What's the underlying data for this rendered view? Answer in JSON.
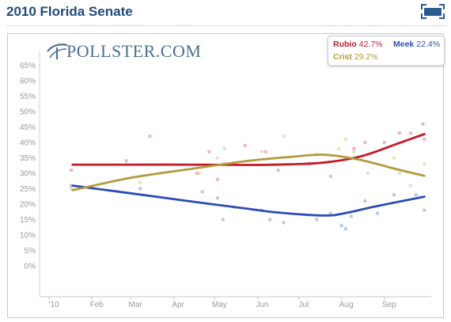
{
  "page": {
    "title": "2010 Florida Senate",
    "logo_text": "POLLSTER.COM",
    "expand_icon": "fullscreen-icon"
  },
  "legend": {
    "entries": [
      {
        "name": "Rubio",
        "value": "42.7%",
        "color": "#c41a28"
      },
      {
        "name": "Meek",
        "value": "22.4%",
        "color": "#2d4cb3"
      },
      {
        "name": "Crist",
        "value": "29.2%",
        "color": "#b39a3c"
      }
    ]
  },
  "chart_data": {
    "type": "line",
    "title": "2010 Florida Senate",
    "xlabel": "",
    "ylabel": "",
    "x_ticks": [
      "'10",
      "Feb",
      "Mar",
      "Apr",
      "May",
      "Jun",
      "Jul",
      "Aug",
      "Sep"
    ],
    "x_tick_dates": [
      "2010-01-01",
      "2010-02-01",
      "2010-03-01",
      "2010-04-01",
      "2010-05-01",
      "2010-06-01",
      "2010-07-01",
      "2010-08-01",
      "2010-09-01"
    ],
    "y_ticks": [
      "0%",
      "5%",
      "10%",
      "15%",
      "20%",
      "25%",
      "30%",
      "35%",
      "40%",
      "45%",
      "50%",
      "55%",
      "60%",
      "65%"
    ],
    "ylim": [
      0,
      65
    ],
    "xlim": [
      "2009-12-25",
      "2010-10-05"
    ],
    "grid": false,
    "legend_position": "top-right",
    "series": [
      {
        "name": "Rubio",
        "color": "#c41a28",
        "trend": [
          {
            "x": "2010-01-18",
            "y": 32.8
          },
          {
            "x": "2010-03-01",
            "y": 32.8
          },
          {
            "x": "2010-04-15",
            "y": 32.8
          },
          {
            "x": "2010-05-25",
            "y": 32.7
          },
          {
            "x": "2010-06-25",
            "y": 32.9
          },
          {
            "x": "2010-07-20",
            "y": 33.5
          },
          {
            "x": "2010-08-15",
            "y": 35.5
          },
          {
            "x": "2010-09-10",
            "y": 39.5
          },
          {
            "x": "2010-09-30",
            "y": 42.7
          }
        ],
        "polls": [
          {
            "x": "2010-01-17",
            "y": 31
          },
          {
            "x": "2010-02-26",
            "y": 34
          },
          {
            "x": "2010-03-15",
            "y": 42
          },
          {
            "x": "2010-04-18",
            "y": 30
          },
          {
            "x": "2010-04-27",
            "y": 37
          },
          {
            "x": "2010-05-03",
            "y": 28
          },
          {
            "x": "2010-05-08",
            "y": 33
          },
          {
            "x": "2010-05-23",
            "y": 39
          },
          {
            "x": "2010-06-07",
            "y": 37
          },
          {
            "x": "2010-06-16",
            "y": 31
          },
          {
            "x": "2010-07-09",
            "y": 33
          },
          {
            "x": "2010-07-24",
            "y": 29
          },
          {
            "x": "2010-08-10",
            "y": 38
          },
          {
            "x": "2010-08-18",
            "y": 40
          },
          {
            "x": "2010-09-01",
            "y": 40
          },
          {
            "x": "2010-09-12",
            "y": 43
          },
          {
            "x": "2010-09-20",
            "y": 43
          },
          {
            "x": "2010-09-29",
            "y": 46
          },
          {
            "x": "2010-09-30",
            "y": 41
          }
        ]
      },
      {
        "name": "Meek",
        "color": "#2d4cb3",
        "trend": [
          {
            "x": "2010-01-18",
            "y": 26
          },
          {
            "x": "2010-03-01",
            "y": 23.5
          },
          {
            "x": "2010-04-15",
            "y": 20.8
          },
          {
            "x": "2010-05-25",
            "y": 18.5
          },
          {
            "x": "2010-06-15",
            "y": 17.3
          },
          {
            "x": "2010-07-20",
            "y": 16.3
          },
          {
            "x": "2010-08-05",
            "y": 17.2
          },
          {
            "x": "2010-08-25",
            "y": 19.2
          },
          {
            "x": "2010-09-30",
            "y": 22.4
          }
        ],
        "polls": [
          {
            "x": "2010-01-17",
            "y": 26
          },
          {
            "x": "2010-03-08",
            "y": 25
          },
          {
            "x": "2010-04-22",
            "y": 24
          },
          {
            "x": "2010-05-03",
            "y": 22
          },
          {
            "x": "2010-05-07",
            "y": 15
          },
          {
            "x": "2010-05-15",
            "y": 19
          },
          {
            "x": "2010-06-04",
            "y": 18
          },
          {
            "x": "2010-06-10",
            "y": 15
          },
          {
            "x": "2010-06-20",
            "y": 14
          },
          {
            "x": "2010-07-14",
            "y": 15
          },
          {
            "x": "2010-07-24",
            "y": 17
          },
          {
            "x": "2010-08-01",
            "y": 13
          },
          {
            "x": "2010-08-04",
            "y": 12
          },
          {
            "x": "2010-08-08",
            "y": 16
          },
          {
            "x": "2010-08-18",
            "y": 21
          },
          {
            "x": "2010-08-27",
            "y": 17
          },
          {
            "x": "2010-09-08",
            "y": 23
          },
          {
            "x": "2010-09-24",
            "y": 23
          },
          {
            "x": "2010-09-30",
            "y": 18
          }
        ]
      },
      {
        "name": "Crist",
        "color": "#b39a3c",
        "trend": [
          {
            "x": "2010-01-18",
            "y": 24.5
          },
          {
            "x": "2010-03-01",
            "y": 28.5
          },
          {
            "x": "2010-04-15",
            "y": 31.5
          },
          {
            "x": "2010-05-25",
            "y": 34
          },
          {
            "x": "2010-06-25",
            "y": 35.3
          },
          {
            "x": "2010-07-20",
            "y": 36
          },
          {
            "x": "2010-08-15",
            "y": 34.3
          },
          {
            "x": "2010-09-10",
            "y": 31.3
          },
          {
            "x": "2010-09-30",
            "y": 29.2
          }
        ],
        "polls": [
          {
            "x": "2010-01-17",
            "y": 25
          },
          {
            "x": "2010-03-08",
            "y": 27
          },
          {
            "x": "2010-04-20",
            "y": 30
          },
          {
            "x": "2010-05-03",
            "y": 35
          },
          {
            "x": "2010-05-08",
            "y": 38
          },
          {
            "x": "2010-06-04",
            "y": 37
          },
          {
            "x": "2010-06-20",
            "y": 42
          },
          {
            "x": "2010-07-14",
            "y": 36
          },
          {
            "x": "2010-07-30",
            "y": 38
          },
          {
            "x": "2010-08-04",
            "y": 41
          },
          {
            "x": "2010-08-10",
            "y": 37
          },
          {
            "x": "2010-08-20",
            "y": 30
          },
          {
            "x": "2010-09-08",
            "y": 35
          },
          {
            "x": "2010-09-12",
            "y": 30
          },
          {
            "x": "2010-09-20",
            "y": 26
          },
          {
            "x": "2010-09-30",
            "y": 33
          }
        ]
      }
    ]
  }
}
